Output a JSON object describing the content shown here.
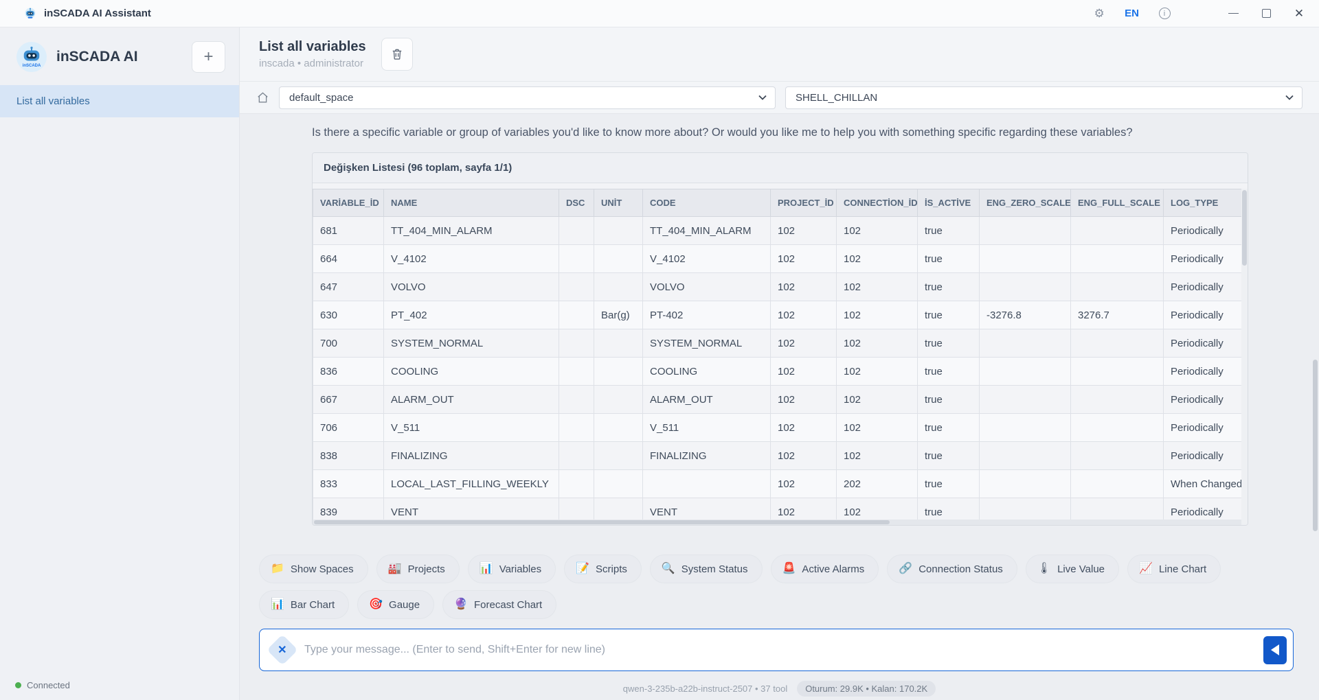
{
  "window": {
    "title": "inSCADA AI Assistant",
    "language": "EN",
    "info_glyph": "i"
  },
  "sidebar": {
    "brand": "inSCADA AI",
    "logo_caption": "inSCADA",
    "new_chat_label": "+",
    "items": [
      {
        "label": "List all variables",
        "selected": true
      }
    ],
    "status": {
      "label": "Connected"
    }
  },
  "header": {
    "title": "List all variables",
    "subtitle": "inscada • administrator"
  },
  "selectors": {
    "space_value": "default_space",
    "connection_value": "SHELL_CHILLAN"
  },
  "chat": {
    "message": "Is there a specific variable or group of variables you'd like to know more about? Or would you like me to help you with something specific regarding these variables?"
  },
  "table": {
    "title": "Değişken Listesi (96 toplam, sayfa 1/1)",
    "columns": [
      "VARİABLE_İD",
      "NAME",
      "DSC",
      "UNİT",
      "CODE",
      "PROJECT_İD",
      "CONNECTİON_İD",
      "İS_ACTİVE",
      "ENG_ZERO_SCALE",
      "ENG_FULL_SCALE",
      "LOG_TYPE"
    ],
    "rows": [
      [
        "681",
        "TT_404_MIN_ALARM",
        "",
        "",
        "TT_404_MIN_ALARM",
        "102",
        "102",
        "true",
        "",
        "",
        "Periodically"
      ],
      [
        "664",
        "V_4102",
        "",
        "",
        "V_4102",
        "102",
        "102",
        "true",
        "",
        "",
        "Periodically"
      ],
      [
        "647",
        "VOLVO",
        "",
        "",
        "VOLVO",
        "102",
        "102",
        "true",
        "",
        "",
        "Periodically"
      ],
      [
        "630",
        "PT_402",
        "",
        "Bar(g)",
        "PT-402",
        "102",
        "102",
        "true",
        "-3276.8",
        "3276.7",
        "Periodically"
      ],
      [
        "700",
        "SYSTEM_NORMAL",
        "",
        "",
        "SYSTEM_NORMAL",
        "102",
        "102",
        "true",
        "",
        "",
        "Periodically"
      ],
      [
        "836",
        "COOLING",
        "",
        "",
        "COOLING",
        "102",
        "102",
        "true",
        "",
        "",
        "Periodically"
      ],
      [
        "667",
        "ALARM_OUT",
        "",
        "",
        "ALARM_OUT",
        "102",
        "102",
        "true",
        "",
        "",
        "Periodically"
      ],
      [
        "706",
        "V_511",
        "",
        "",
        "V_511",
        "102",
        "102",
        "true",
        "",
        "",
        "Periodically"
      ],
      [
        "838",
        "FINALIZING",
        "",
        "",
        "FINALIZING",
        "102",
        "102",
        "true",
        "",
        "",
        "Periodically"
      ],
      [
        "833",
        "LOCAL_LAST_FILLING_WEEKLY",
        "",
        "",
        "",
        "102",
        "202",
        "true",
        "",
        "",
        "When Changed"
      ],
      [
        "839",
        "VENT",
        "",
        "",
        "VENT",
        "102",
        "102",
        "true",
        "",
        "",
        "Periodically"
      ]
    ]
  },
  "quick_actions": {
    "row1": [
      {
        "icon": "📁",
        "label": "Show Spaces"
      },
      {
        "icon": "🏭",
        "label": "Projects"
      },
      {
        "icon": "📊",
        "label": "Variables"
      },
      {
        "icon": "📝",
        "label": "Scripts"
      },
      {
        "icon": "🔍",
        "label": "System Status"
      },
      {
        "icon": "🚨",
        "label": "Active Alarms"
      },
      {
        "icon": "🔗",
        "label": "Connection Status"
      },
      {
        "icon": "🌡",
        "label": "Live Value"
      },
      {
        "icon": "📈",
        "label": "Line Chart"
      }
    ],
    "row2": [
      {
        "icon": "📊",
        "label": "Bar Chart"
      },
      {
        "icon": "🎯",
        "label": "Gauge"
      },
      {
        "icon": "🔮",
        "label": "Forecast Chart"
      }
    ]
  },
  "composer": {
    "placeholder": "Type your message... (Enter to send, Shift+Enter for new line)",
    "clear_glyph": "✕"
  },
  "footer": {
    "model": "qwen-3-235b-a22b-instruct-2507 • 37 tool",
    "tokens": "Oturum: 29.9K • Kalan: 170.2K"
  },
  "colors": {
    "accent_blue": "#1565d8",
    "selected_item_bg": "#d7e5f6",
    "connected_green": "#4caf50"
  }
}
